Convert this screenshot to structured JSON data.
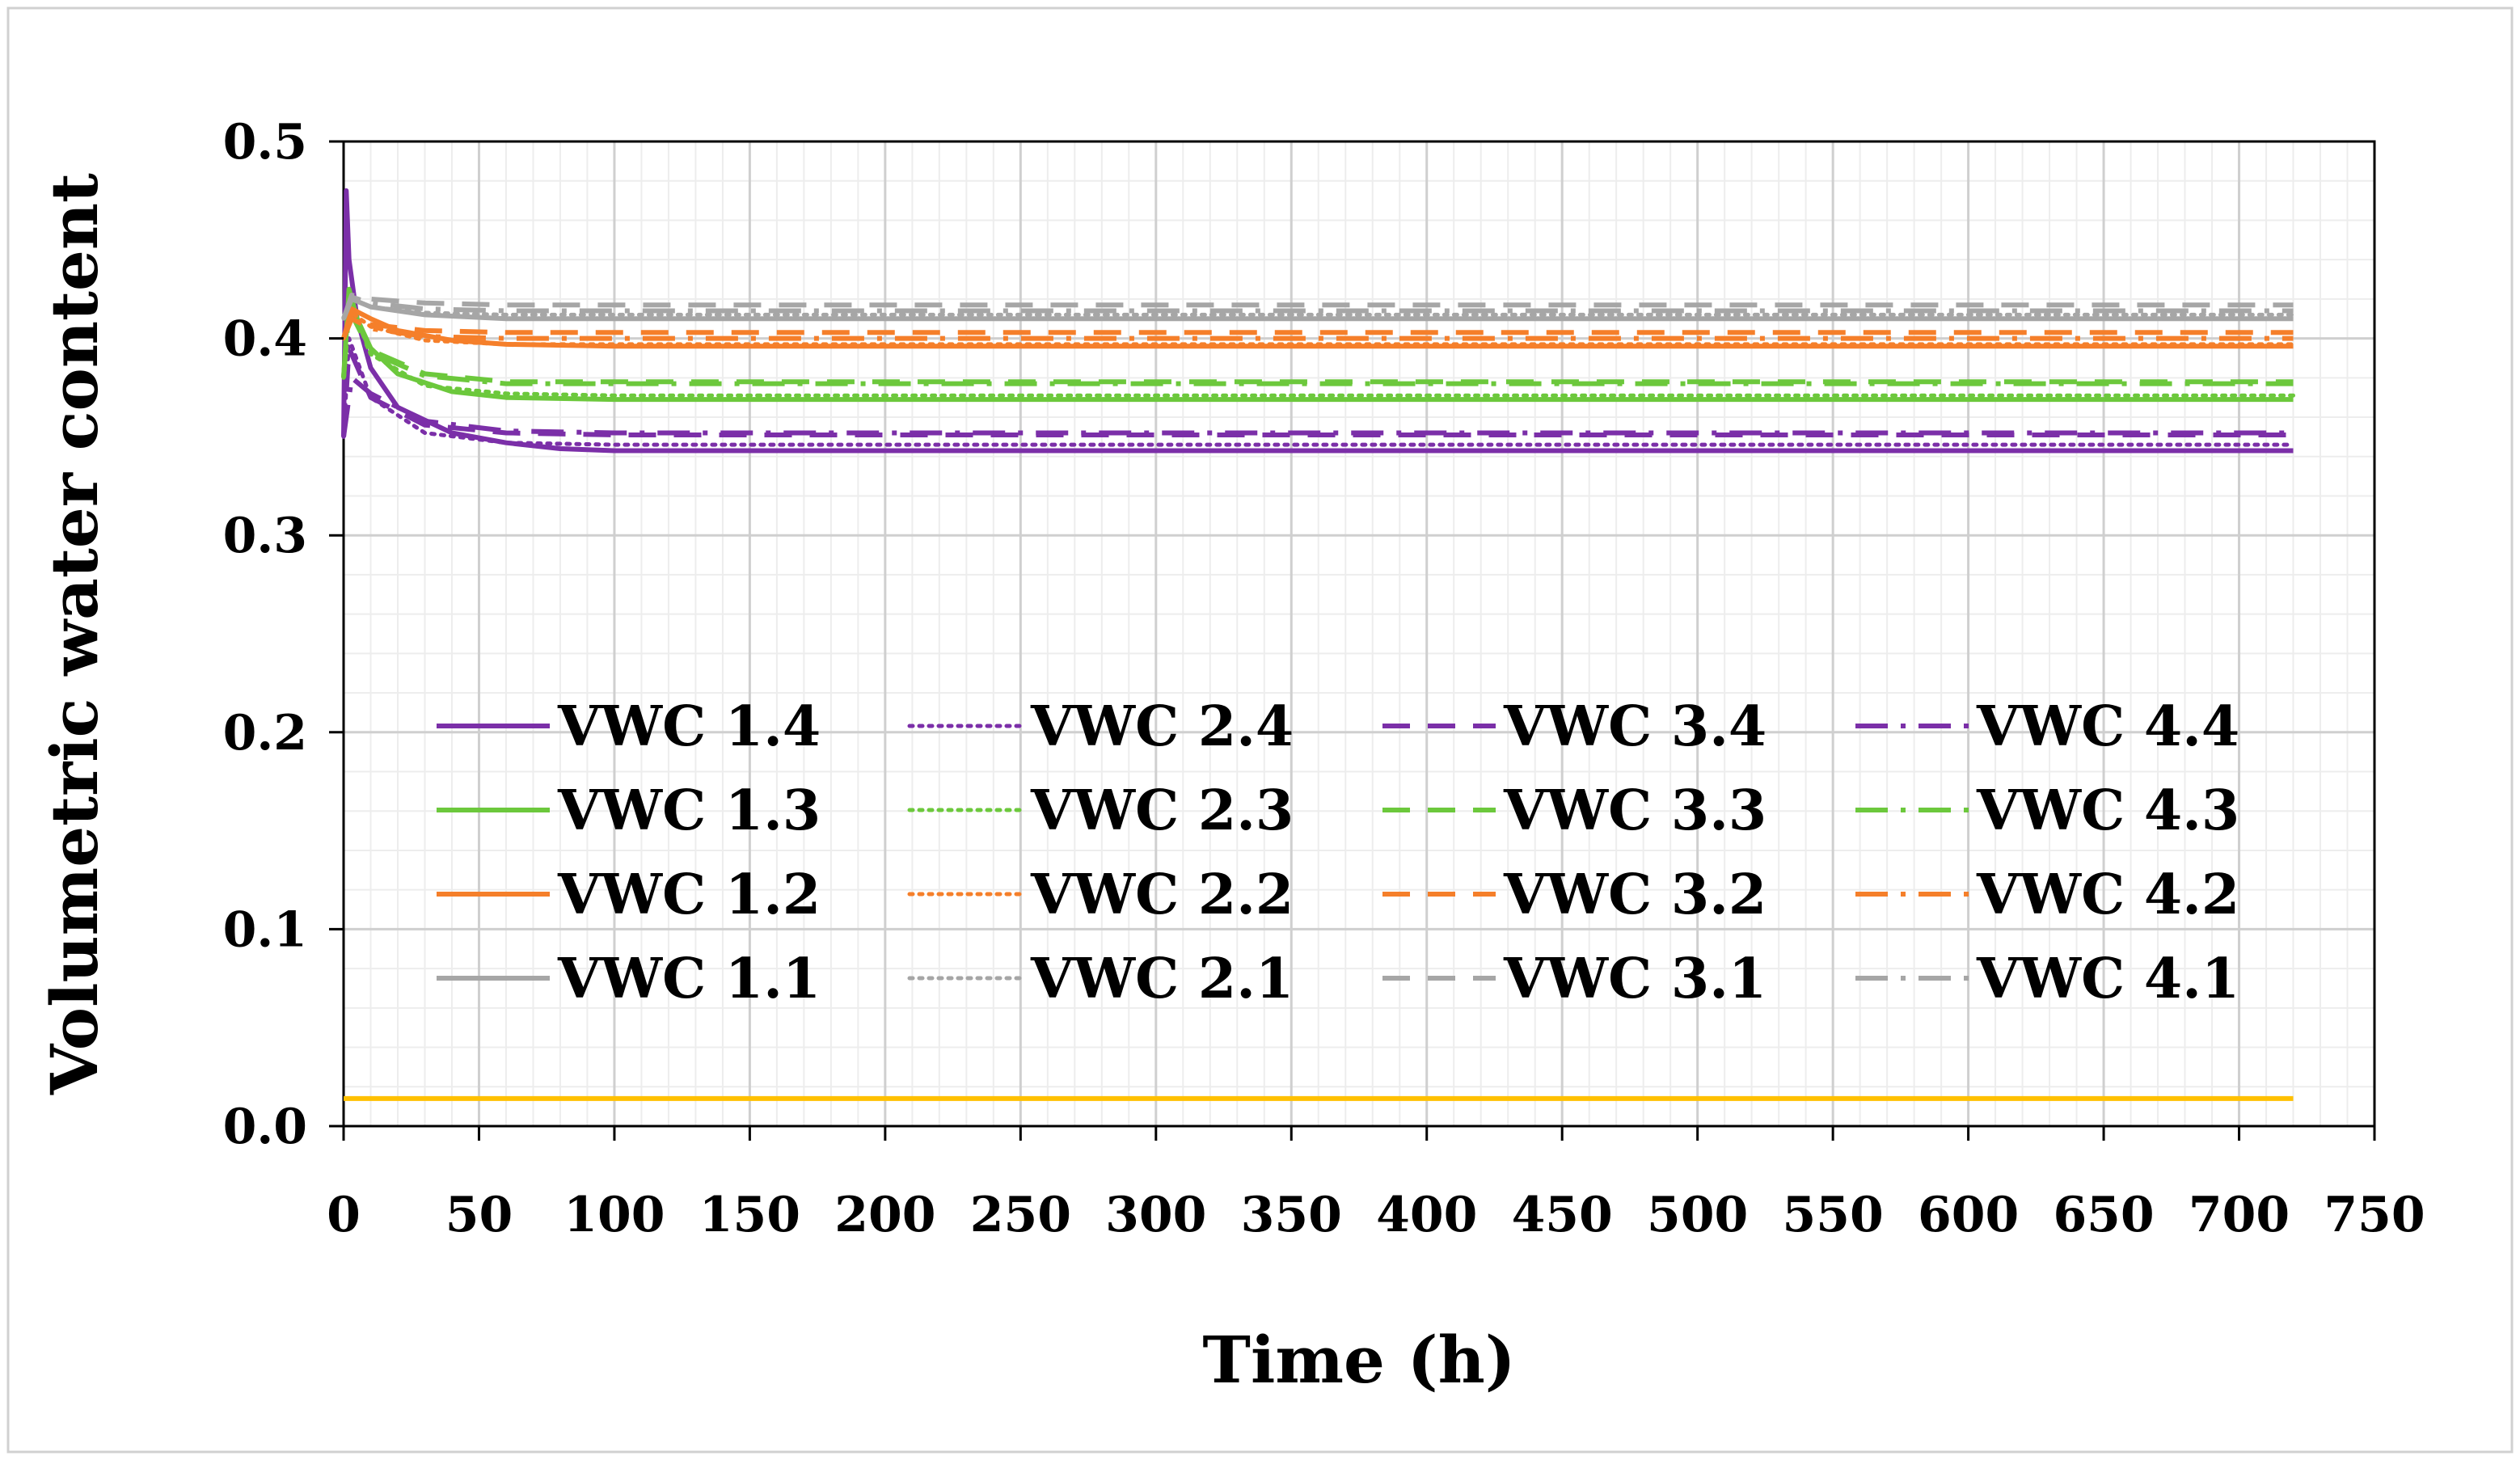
{
  "chart_data": {
    "type": "line",
    "title": "",
    "xlabel": "Time (h)",
    "ylabel": "Volumetric water content",
    "xlim": [
      0,
      750
    ],
    "ylim": [
      0.0,
      0.5
    ],
    "x_ticks": [
      0,
      50,
      100,
      150,
      200,
      250,
      300,
      350,
      400,
      450,
      500,
      550,
      600,
      650,
      700,
      750
    ],
    "y_ticks": [
      0.0,
      0.1,
      0.2,
      0.3,
      0.4,
      0.5
    ],
    "x_tick_labels": [
      "0",
      "50",
      "100",
      "150",
      "200",
      "250",
      "300",
      "350",
      "400",
      "450",
      "500",
      "550",
      "600",
      "650",
      "700",
      "750"
    ],
    "y_tick_labels": [
      "0.0",
      "0.1",
      "0.2",
      "0.3",
      "0.4",
      "0.5"
    ],
    "grid": true,
    "legend_position": "center-left, inside plot",
    "colors": {
      "purple": "#7b2fa8",
      "green": "#6cc83c",
      "orange": "#f57f2a",
      "gray": "#a6a6a6",
      "yellow": "#ffc000"
    },
    "series": [
      {
        "name": "VWC 1.4",
        "color": "purple",
        "dash": "solid",
        "x": [
          0,
          1,
          2,
          5,
          10,
          20,
          40,
          60,
          80,
          100,
          150,
          720
        ],
        "values": [
          0.35,
          0.475,
          0.44,
          0.41,
          0.385,
          0.365,
          0.352,
          0.347,
          0.344,
          0.343,
          0.343,
          0.343
        ]
      },
      {
        "name": "VWC 2.4",
        "color": "purple",
        "dash": "dot",
        "x": [
          0,
          2,
          10,
          30,
          60,
          100,
          720
        ],
        "values": [
          0.35,
          0.4,
          0.37,
          0.352,
          0.347,
          0.346,
          0.346
        ]
      },
      {
        "name": "VWC 3.4",
        "color": "purple",
        "dash": "dash",
        "x": [
          0,
          2,
          10,
          30,
          60,
          100,
          720
        ],
        "values": [
          0.35,
          0.395,
          0.37,
          0.356,
          0.352,
          0.351,
          0.351
        ]
      },
      {
        "name": "VWC 4.4",
        "color": "purple",
        "dash": "dashdot",
        "x": [
          0,
          3,
          10,
          30,
          60,
          100,
          720
        ],
        "values": [
          0.35,
          0.38,
          0.372,
          0.358,
          0.353,
          0.352,
          0.352
        ]
      },
      {
        "name": "VWC 1.3",
        "color": "green",
        "dash": "solid",
        "x": [
          0,
          2,
          5,
          10,
          20,
          40,
          60,
          100,
          720
        ],
        "values": [
          0.38,
          0.425,
          0.41,
          0.395,
          0.382,
          0.373,
          0.37,
          0.369,
          0.369
        ]
      },
      {
        "name": "VWC 2.3",
        "color": "green",
        "dash": "dot",
        "x": [
          0,
          2,
          10,
          30,
          60,
          100,
          720
        ],
        "values": [
          0.38,
          0.42,
          0.392,
          0.376,
          0.372,
          0.371,
          0.371
        ]
      },
      {
        "name": "VWC 3.3",
        "color": "green",
        "dash": "dash",
        "x": [
          0,
          2,
          10,
          30,
          60,
          100,
          720
        ],
        "values": [
          0.38,
          0.418,
          0.394,
          0.382,
          0.378,
          0.378,
          0.378
        ]
      },
      {
        "name": "VWC 4.3",
        "color": "green",
        "dash": "dashdot",
        "x": [
          0,
          2,
          10,
          30,
          60,
          100,
          720
        ],
        "values": [
          0.38,
          0.415,
          0.393,
          0.381,
          0.377,
          0.377,
          0.377
        ]
      },
      {
        "name": "VWC 1.2",
        "color": "orange",
        "dash": "solid",
        "x": [
          0,
          3,
          10,
          20,
          40,
          60,
          100,
          720
        ],
        "values": [
          0.4,
          0.415,
          0.41,
          0.404,
          0.399,
          0.397,
          0.396,
          0.396
        ]
      },
      {
        "name": "VWC 2.2",
        "color": "orange",
        "dash": "dot",
        "x": [
          0,
          3,
          10,
          30,
          60,
          100,
          720
        ],
        "values": [
          0.4,
          0.413,
          0.406,
          0.399,
          0.397,
          0.397,
          0.397
        ]
      },
      {
        "name": "VWC 3.2",
        "color": "orange",
        "dash": "dash",
        "x": [
          0,
          3,
          10,
          30,
          60,
          100,
          720
        ],
        "values": [
          0.4,
          0.412,
          0.407,
          0.404,
          0.403,
          0.403,
          0.403
        ]
      },
      {
        "name": "VWC 4.2",
        "color": "orange",
        "dash": "dashdot",
        "x": [
          0,
          3,
          10,
          30,
          60,
          100,
          720
        ],
        "values": [
          0.4,
          0.41,
          0.405,
          0.401,
          0.4,
          0.4,
          0.4
        ]
      },
      {
        "name": "VWC 1.1",
        "color": "gray",
        "dash": "solid",
        "x": [
          0,
          3,
          10,
          30,
          60,
          100,
          720
        ],
        "values": [
          0.41,
          0.42,
          0.416,
          0.412,
          0.41,
          0.41,
          0.41
        ]
      },
      {
        "name": "VWC 2.1",
        "color": "gray",
        "dash": "dot",
        "x": [
          0,
          3,
          10,
          30,
          60,
          100,
          720
        ],
        "values": [
          0.41,
          0.42,
          0.416,
          0.413,
          0.412,
          0.412,
          0.412
        ]
      },
      {
        "name": "VWC 3.1",
        "color": "gray",
        "dash": "dash",
        "x": [
          0,
          3,
          10,
          30,
          60,
          100,
          720
        ],
        "values": [
          0.41,
          0.422,
          0.42,
          0.418,
          0.417,
          0.417,
          0.417
        ]
      },
      {
        "name": "VWC 4.1",
        "color": "gray",
        "dash": "dashdot",
        "x": [
          0,
          3,
          10,
          30,
          60,
          100,
          720
        ],
        "values": [
          0.41,
          0.421,
          0.418,
          0.415,
          0.414,
          0.414,
          0.414
        ]
      },
      {
        "name": "",
        "color": "yellow",
        "dash": "solid",
        "x": [
          0,
          720
        ],
        "values": [
          0.014,
          0.014
        ],
        "in_legend": false
      }
    ],
    "legend_order": [
      [
        "VWC 1.4",
        "VWC 2.4",
        "VWC 3.4",
        "VWC 4.4"
      ],
      [
        "VWC 1.3",
        "VWC 2.3",
        "VWC 3.3",
        "VWC 4.3"
      ],
      [
        "VWC 1.2",
        "VWC 2.2",
        "VWC 3.2",
        "VWC 4.2"
      ],
      [
        "VWC 1.1",
        "VWC 2.1",
        "VWC 3.1",
        "VWC 4.1"
      ]
    ]
  }
}
